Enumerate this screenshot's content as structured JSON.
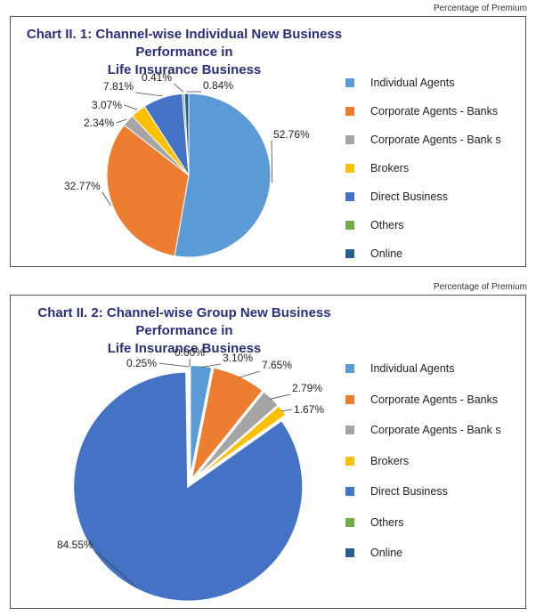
{
  "colors": {
    "individual_agents": "#5b9bd5",
    "corporate_agents_banks": "#ed7d31",
    "corporate_agents_bank_s": "#a5a5a5",
    "brokers": "#ffc000",
    "direct_business": "#4472c4",
    "others": "#70ad47",
    "online": "#255e91",
    "title": "#2b2f7a"
  },
  "chart_data": [
    {
      "type": "pie",
      "caption": "Percentage of Premium",
      "title_line1": "Chart II. 1: Channel-wise Individual New Business Performance in",
      "title_line2": "Life Insurance Business",
      "legend": [
        "Individual Agents",
        "Corporate Agents - Banks",
        "Corporate Agents - Bank s",
        "Brokers",
        "Direct Business",
        "Others",
        "Online"
      ],
      "values": [
        52.76,
        32.77,
        2.34,
        3.07,
        7.81,
        0.41,
        0.84
      ],
      "labels": [
        "52.76%",
        "32.77%",
        "2.34%",
        "3.07%",
        "7.81%",
        "0.41%",
        "0.84%"
      ],
      "exploded": false
    },
    {
      "type": "pie",
      "caption": "Percentage of Premium",
      "title_line1": "Chart II. 2: Channel-wise Group New Business Performance in",
      "title_line2": "Life Insurance Business",
      "legend": [
        "Individual Agents",
        "Corporate Agents - Banks",
        "Corporate Agents - Bank s",
        "Brokers",
        "Direct Business",
        "Others",
        "Online"
      ],
      "values": [
        3.1,
        7.65,
        2.79,
        1.67,
        84.55,
        0.25,
        0.0
      ],
      "labels": [
        "3.10%",
        "7.65%",
        "2.79%",
        "1.67%",
        "84.55%",
        "0.25%",
        "0.00%"
      ],
      "exploded": true
    }
  ]
}
